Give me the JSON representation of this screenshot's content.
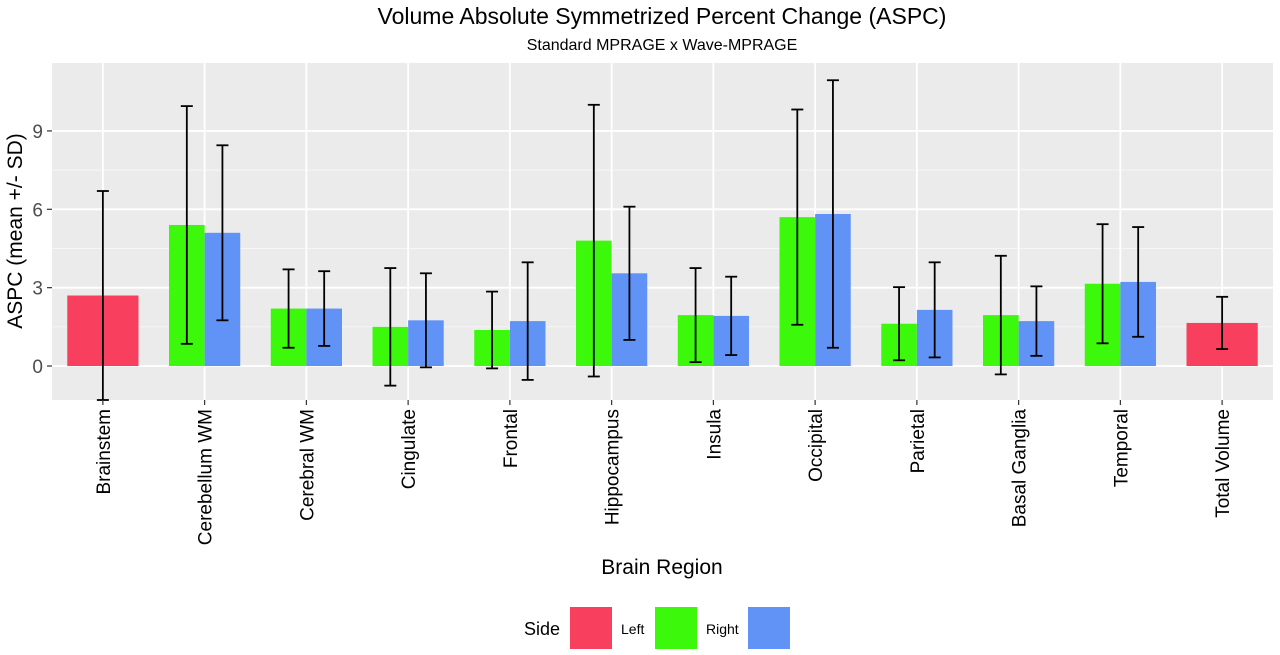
{
  "chart_data": {
    "type": "bar",
    "title": "Volume Absolute Symmetrized Percent Change (ASPC)",
    "subtitle": "Standard MPRAGE x Wave-MPRAGE",
    "xlabel": "Brain Region",
    "ylabel": "ASPC (mean +/- SD)",
    "ylim": [
      -1.3,
      11.6
    ],
    "yticks": [
      0,
      3,
      6,
      9
    ],
    "grid": true,
    "legend": {
      "title": "Side",
      "placement": "bottom",
      "labels": [
        "Left",
        "Right"
      ]
    },
    "categories": [
      "Brainstem",
      "Cerebellum WM",
      "Cerebral WM",
      "Cingulate",
      "Frontal",
      "Hippocampus",
      "Insula",
      "Occipital",
      "Parietal",
      "Basal Ganglia",
      "Temporal",
      "Total Volume"
    ],
    "colors": {
      "none": "#F8405E",
      "Left": "#3CF90B",
      "Right": "#6193F7"
    },
    "bars": [
      {
        "category": "Brainstem",
        "group": "none",
        "mean": 2.7,
        "sd": 4.0
      },
      {
        "category": "Cerebellum WM",
        "group": "Left",
        "mean": 5.4,
        "sd": 4.55
      },
      {
        "category": "Cerebellum WM",
        "group": "Right",
        "mean": 5.1,
        "sd": 3.35
      },
      {
        "category": "Cerebral WM",
        "group": "Left",
        "mean": 2.2,
        "sd": 1.5
      },
      {
        "category": "Cerebral WM",
        "group": "Right",
        "mean": 2.2,
        "sd": 1.43
      },
      {
        "category": "Cingulate",
        "group": "Left",
        "mean": 1.5,
        "sd": 2.25
      },
      {
        "category": "Cingulate",
        "group": "Right",
        "mean": 1.75,
        "sd": 1.8
      },
      {
        "category": "Frontal",
        "group": "Left",
        "mean": 1.38,
        "sd": 1.47
      },
      {
        "category": "Frontal",
        "group": "Right",
        "mean": 1.72,
        "sd": 2.25
      },
      {
        "category": "Hippocampus",
        "group": "Left",
        "mean": 4.8,
        "sd": 5.2
      },
      {
        "category": "Hippocampus",
        "group": "Right",
        "mean": 3.55,
        "sd": 2.55
      },
      {
        "category": "Insula",
        "group": "Left",
        "mean": 1.95,
        "sd": 1.8
      },
      {
        "category": "Insula",
        "group": "Right",
        "mean": 1.92,
        "sd": 1.5
      },
      {
        "category": "Occipital",
        "group": "Left",
        "mean": 5.7,
        "sd": 4.12
      },
      {
        "category": "Occipital",
        "group": "Right",
        "mean": 5.82,
        "sd": 5.12
      },
      {
        "category": "Parietal",
        "group": "Left",
        "mean": 1.62,
        "sd": 1.4
      },
      {
        "category": "Parietal",
        "group": "Right",
        "mean": 2.15,
        "sd": 1.82
      },
      {
        "category": "Basal Ganglia",
        "group": "Left",
        "mean": 1.95,
        "sd": 2.27
      },
      {
        "category": "Basal Ganglia",
        "group": "Right",
        "mean": 1.72,
        "sd": 1.33
      },
      {
        "category": "Temporal",
        "group": "Left",
        "mean": 3.15,
        "sd": 2.28
      },
      {
        "category": "Temporal",
        "group": "Right",
        "mean": 3.22,
        "sd": 2.1
      },
      {
        "category": "Total Volume",
        "group": "none",
        "mean": 1.65,
        "sd": 1.0
      }
    ]
  }
}
